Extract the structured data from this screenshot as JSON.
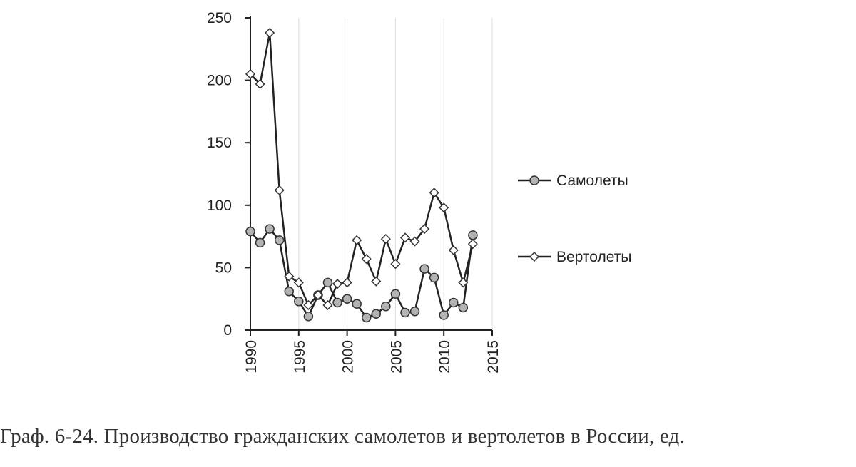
{
  "caption": "Граф. 6-24. Производство гражданских самолетов и вертолетов в России, ед.",
  "chart_data": {
    "type": "line",
    "title": "",
    "xlabel": "",
    "ylabel": "",
    "xlim": [
      1990,
      2015
    ],
    "ylim": [
      0,
      250
    ],
    "x_ticks": [
      1990,
      1995,
      2000,
      2005,
      2010,
      2015
    ],
    "y_ticks": [
      0,
      50,
      100,
      150,
      200,
      250
    ],
    "grid": "vertical",
    "legend_position": "right",
    "series": [
      {
        "name": "Самолеты",
        "marker": "circle",
        "marker_color": "#b3b3b3",
        "line_color": "#222222",
        "x": [
          1990,
          1991,
          1992,
          1993,
          1994,
          1995,
          1996,
          1997,
          1998,
          1999,
          2000,
          2001,
          2002,
          2003,
          2004,
          2005,
          2006,
          2007,
          2008,
          2009,
          2010,
          2011,
          2012,
          2013
        ],
        "values": [
          79,
          70,
          81,
          72,
          31,
          23,
          11,
          28,
          38,
          22,
          25,
          21,
          10,
          13,
          19,
          29,
          14,
          15,
          49,
          42,
          12,
          22,
          18,
          76
        ]
      },
      {
        "name": "Вертолеты",
        "marker": "diamond",
        "marker_color": "#ffffff",
        "line_color": "#222222",
        "x": [
          1990,
          1991,
          1992,
          1993,
          1994,
          1995,
          1996,
          1997,
          1998,
          1999,
          2000,
          2001,
          2002,
          2003,
          2004,
          2005,
          2006,
          2007,
          2008,
          2009,
          2010,
          2011,
          2012,
          2013
        ],
        "values": [
          205,
          197,
          238,
          112,
          43,
          38,
          20,
          28,
          20,
          37,
          38,
          72,
          57,
          39,
          73,
          53,
          74,
          71,
          81,
          110,
          98,
          64,
          38,
          69
        ]
      }
    ]
  }
}
